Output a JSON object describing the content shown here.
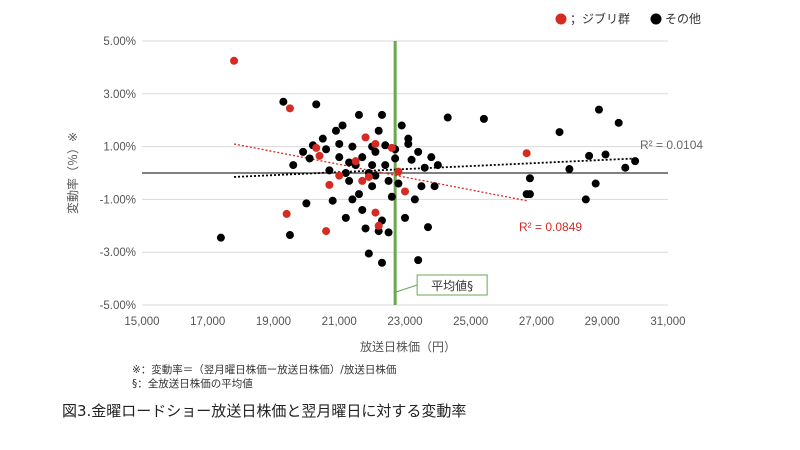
{
  "chart_data": {
    "type": "scatter",
    "xlabel": "放送日株価（円）",
    "ylabel": "変動率（％）※",
    "xlim": [
      15000,
      31000
    ],
    "ylim": [
      -5.0,
      5.0
    ],
    "x_ticks": [
      "15,000",
      "17,000",
      "19,000",
      "21,000",
      "23,000",
      "25,000",
      "27,000",
      "29,000",
      "31,000"
    ],
    "y_ticks": [
      "5.00%",
      "3.00%",
      "1.00%",
      "-1.00%",
      "-3.00%",
      "-5.00%"
    ],
    "grid": "horizontal",
    "legend_position": "top-right",
    "legend": [
      {
        "label": "；ジブリ群",
        "color": "#d62b22"
      },
      {
        "label": "その他",
        "color": "#000000"
      }
    ],
    "mean_line": {
      "x": 22700,
      "label": "平均値§",
      "color": "#6aa84f"
    },
    "series": [
      {
        "name": "ジブリ群",
        "color": "#d62b22",
        "points": [
          [
            17800,
            4.25
          ],
          [
            19500,
            2.45
          ],
          [
            19400,
            -1.55
          ],
          [
            20700,
            -0.45
          ],
          [
            20600,
            -2.2
          ],
          [
            20300,
            0.95
          ],
          [
            20400,
            0.65
          ],
          [
            21800,
            1.35
          ],
          [
            22100,
            1.1
          ],
          [
            21500,
            0.45
          ],
          [
            21700,
            -0.3
          ],
          [
            22100,
            -1.5
          ],
          [
            22200,
            -2.0
          ],
          [
            22800,
            0.05
          ],
          [
            23000,
            -0.7
          ],
          [
            22600,
            0.95
          ],
          [
            21000,
            -0.1
          ],
          [
            21900,
            -0.15
          ],
          [
            26700,
            0.75
          ]
        ],
        "trendline": {
          "x": [
            17800,
            26700
          ],
          "y": [
            1.1,
            -1.05
          ],
          "label": "R² = 0.0849"
        }
      },
      {
        "name": "その他",
        "color": "#000000",
        "points": [
          [
            17400,
            -2.45
          ],
          [
            19300,
            2.7
          ],
          [
            19500,
            -2.35
          ],
          [
            19600,
            0.3
          ],
          [
            19900,
            0.8
          ],
          [
            20000,
            -1.15
          ],
          [
            20100,
            0.55
          ],
          [
            20200,
            1.05
          ],
          [
            20300,
            2.6
          ],
          [
            20500,
            1.3
          ],
          [
            20700,
            0.1
          ],
          [
            20800,
            -1.05
          ],
          [
            20900,
            1.6
          ],
          [
            21000,
            0.6
          ],
          [
            21100,
            1.8
          ],
          [
            21200,
            -1.7
          ],
          [
            21300,
            0.4
          ],
          [
            21400,
            1.0
          ],
          [
            21500,
            0.3
          ],
          [
            21600,
            -0.8
          ],
          [
            21600,
            2.2
          ],
          [
            21700,
            0.6
          ],
          [
            21800,
            -2.1
          ],
          [
            21900,
            0.0
          ],
          [
            22000,
            -0.5
          ],
          [
            22100,
            0.8
          ],
          [
            22200,
            1.6
          ],
          [
            22300,
            2.2
          ],
          [
            22300,
            -1.8
          ],
          [
            22400,
            0.3
          ],
          [
            22500,
            -0.3
          ],
          [
            22500,
            -2.25
          ],
          [
            22300,
            -3.4
          ],
          [
            22200,
            -2.2
          ],
          [
            22400,
            1.05
          ],
          [
            21900,
            -3.05
          ],
          [
            21700,
            -1.4
          ],
          [
            22000,
            0.3
          ],
          [
            22100,
            -0.1
          ],
          [
            22700,
            0.55
          ],
          [
            22800,
            -0.4
          ],
          [
            22900,
            1.8
          ],
          [
            23000,
            -1.7
          ],
          [
            23100,
            1.3
          ],
          [
            23200,
            0.5
          ],
          [
            23300,
            -1.0
          ],
          [
            23400,
            0.8
          ],
          [
            23500,
            -0.5
          ],
          [
            23400,
            -3.3
          ],
          [
            23600,
            0.2
          ],
          [
            23700,
            -2.05
          ],
          [
            23800,
            0.6
          ],
          [
            23900,
            -0.5
          ],
          [
            24000,
            0.3
          ],
          [
            24300,
            2.1
          ],
          [
            25400,
            2.05
          ],
          [
            26700,
            -0.8
          ],
          [
            26800,
            -0.8
          ],
          [
            26800,
            -0.2
          ],
          [
            27700,
            1.55
          ],
          [
            28000,
            0.15
          ],
          [
            28500,
            -1.0
          ],
          [
            28600,
            0.65
          ],
          [
            28800,
            -0.4
          ],
          [
            28900,
            2.4
          ],
          [
            29100,
            0.7
          ],
          [
            29500,
            1.9
          ],
          [
            29700,
            0.2
          ],
          [
            30000,
            0.45
          ],
          [
            22600,
            -0.9
          ],
          [
            21300,
            -0.3
          ],
          [
            20600,
            0.9
          ],
          [
            21000,
            1.1
          ],
          [
            22700,
            0.9
          ],
          [
            23100,
            1.1
          ],
          [
            21400,
            -1.0
          ],
          [
            22000,
            1.0
          ],
          [
            21200,
            0.0
          ]
        ],
        "trendline": {
          "x": [
            17800,
            30000
          ],
          "y": [
            -0.15,
            0.55
          ],
          "label": "R² = 0.0104"
        }
      }
    ]
  },
  "notes": {
    "note1": "※：変動率＝（翌月曜日株価ー放送日株価）/放送日株価",
    "note2": "§：全放送日株価の平均値"
  },
  "caption": "図3.金曜ロードショー放送日株価と翌月曜日に対する変動率"
}
